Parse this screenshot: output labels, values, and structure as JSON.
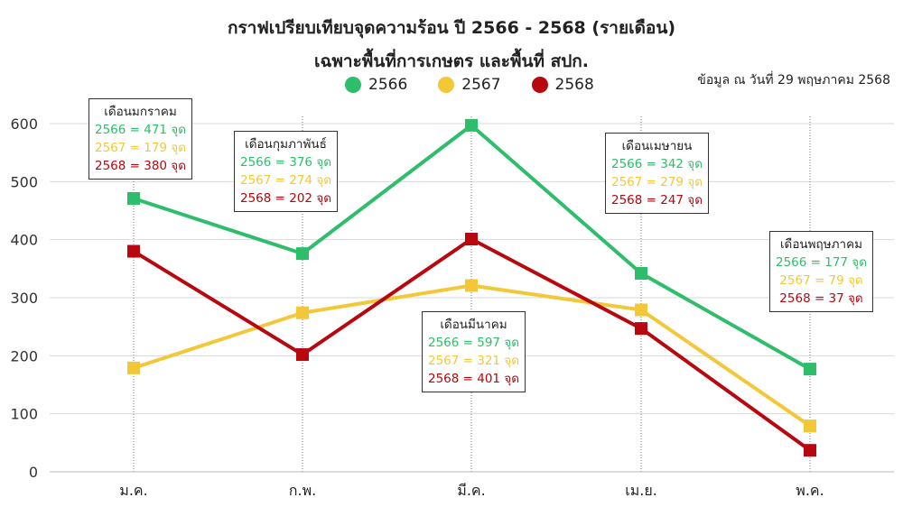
{
  "chart_data": {
    "type": "line",
    "title": "กราฟเปรียบเทียบจุดความร้อน ปี 2566 - 2568 (รายเดือน)",
    "subtitle": "เฉพาะพื้นที่การเกษตร และพื้นที่ สปก.",
    "note": "ข้อมูล ณ วันที่ 29 พฤษภาคม 2568",
    "categories": [
      "ม.ค.",
      "ก.พ.",
      "มี.ค.",
      "เม.ย.",
      "พ.ค."
    ],
    "ylim": [
      0,
      600
    ],
    "yticks": [
      0,
      100,
      200,
      300,
      400,
      500,
      600
    ],
    "grid": true,
    "legend_position": "top",
    "series": [
      {
        "name": "2566",
        "color": "#2ebd6b",
        "values": [
          471,
          376,
          597,
          342,
          177
        ]
      },
      {
        "name": "2567",
        "color": "#f2c838",
        "values": [
          179,
          274,
          321,
          279,
          79
        ]
      },
      {
        "name": "2568",
        "color": "#b8070f",
        "values": [
          380,
          202,
          401,
          247,
          37
        ]
      }
    ],
    "annotations": [
      {
        "title": "เดือนมกราคม",
        "lines": [
          "2566 = 471 จุด",
          "2567 = 179 จุด",
          "2568 = 380 จุด"
        ]
      },
      {
        "title": "เดือนกุมภาพันธ์",
        "lines": [
          "2566 = 376 จุด",
          "2567 = 274 จุด",
          "2568 = 202 จุด"
        ]
      },
      {
        "title": "เดือนมีนาคม",
        "lines": [
          "2566 = 597 จุด",
          "2567 = 321 จุด",
          "2568 = 401 จุด"
        ]
      },
      {
        "title": "เดือนเมษายน",
        "lines": [
          "2566 = 342 จุด",
          "2567 = 279 จุด",
          "2568 = 247 จุด"
        ]
      },
      {
        "title": "เดือนพฤษภาคม",
        "lines": [
          "2566 = 177 จุด",
          "2567 = 79 จุด",
          "2568 = 37 จุด"
        ]
      }
    ]
  }
}
